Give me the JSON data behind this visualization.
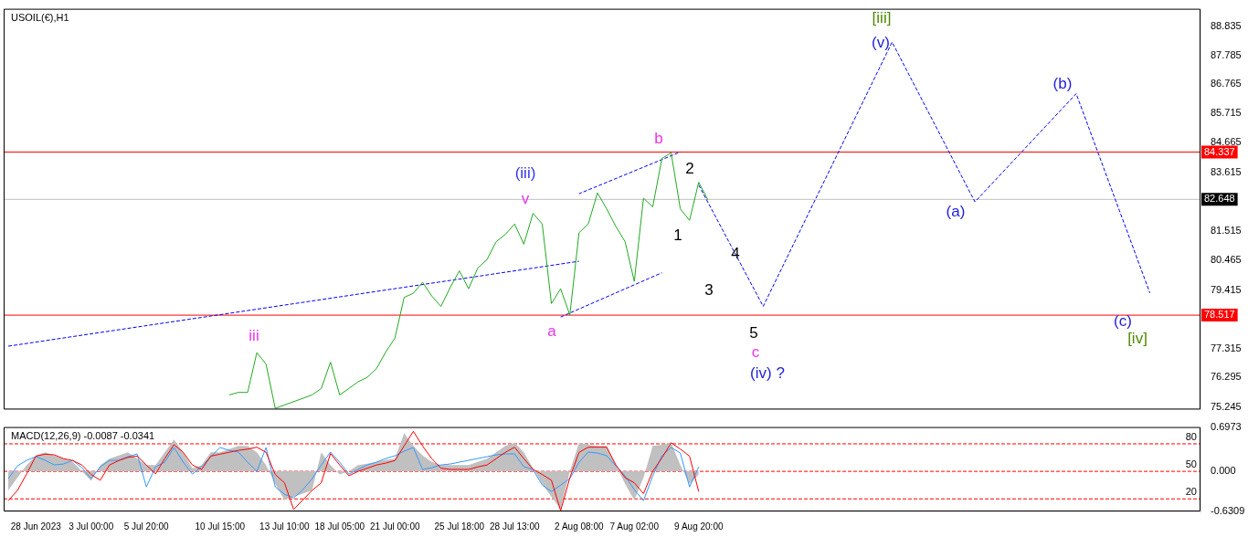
{
  "chart_data": [
    {
      "type": "line",
      "title": "USOIL(€),H1",
      "ylim": [
        75.15,
        89.45
      ],
      "categories": [
        null,
        null,
        null,
        null,
        null,
        null,
        null,
        null,
        null,
        null,
        null,
        null,
        null,
        null,
        null,
        null,
        null,
        null,
        null,
        null,
        null,
        null,
        null,
        null,
        null,
        null,
        null,
        null,
        null,
        null,
        null,
        null,
        null,
        null,
        null,
        null,
        null,
        null,
        null,
        null,
        null,
        null,
        null,
        null,
        null,
        null,
        null,
        null,
        null,
        null,
        null,
        null,
        null,
        null,
        null,
        null,
        null,
        null,
        null,
        null,
        null,
        null,
        null,
        null,
        null,
        null,
        null,
        null,
        null,
        null,
        null,
        null,
        null,
        null,
        null,
        null,
        null,
        null,
        null,
        null,
        null,
        null,
        null,
        null,
        null,
        null,
        null,
        null,
        null,
        null,
        null,
        null,
        null,
        null,
        null,
        null,
        null,
        null,
        null,
        null,
        null,
        null,
        null,
        null,
        null,
        null,
        null,
        null,
        null,
        null,
        null,
        null,
        null,
        null,
        null,
        null,
        null,
        null,
        null,
        null,
        null,
        null,
        null,
        null,
        null,
        null,
        null,
        null,
        null,
        null
      ],
      "yticks": [
        75.245,
        76.295,
        77.315,
        79.415,
        80.465,
        81.515,
        83.615,
        84.665,
        85.715,
        86.765,
        87.785,
        88.835
      ],
      "tick_labels": "y",
      "grid": false,
      "marker": "none",
      "series": [
        {
          "color": "#22aa22",
          "values": [
            null,
            null,
            null,
            null,
            null,
            null,
            null,
            null,
            null,
            null,
            null,
            null,
            null,
            null,
            null,
            null,
            null,
            null,
            null,
            null,
            null,
            null,
            null,
            null,
            75.67,
            75.76,
            75.76,
            77.18,
            76.77,
            75.19,
            null,
            null,
            null,
            75.67,
            75.9,
            76.84,
            75.67,
            75.9,
            76.14,
            76.3,
            76.61,
            77.2,
            77.7,
            79.15,
            79.3,
            79.69,
            79.2,
            78.83,
            79.5,
            80.1,
            79.46,
            80.2,
            80.5,
            81.14,
            81.4,
            81.77,
            81.05,
            82.15,
            81.77,
            78.93,
            79.46,
            78.52,
            81.46,
            81.77,
            82.88,
            82.31,
            81.68,
            81.14,
            79.72,
            82.69,
            82.38,
            84.11,
            84.31,
            82.31,
            81.9,
            83.26,
            82.63,
            null,
            null,
            null,
            null,
            null,
            null,
            null,
            null,
            null,
            null,
            null,
            null,
            null,
            null,
            null,
            null,
            null,
            null,
            null,
            null,
            null,
            null,
            null,
            null,
            null,
            null,
            null,
            null,
            null,
            null,
            null,
            null,
            null,
            null,
            null,
            null,
            null,
            null,
            null,
            null,
            null,
            null,
            null,
            null,
            null,
            null,
            null,
            null,
            null,
            null,
            null,
            null,
            null
          ]
        },
        {
          "color": "#0000ff",
          "line_style": "dashed",
          "values": [
            77.41,
            null,
            null,
            null,
            null,
            null,
            null,
            null,
            null,
            null,
            null,
            null,
            null,
            null,
            null,
            null,
            null,
            null,
            null,
            null,
            null,
            null,
            null,
            null,
            null,
            null,
            null,
            null,
            null,
            null,
            null,
            null,
            null,
            null,
            null,
            null,
            null,
            null,
            null,
            null,
            null,
            null,
            null,
            null,
            null,
            null,
            null,
            null,
            null,
            null,
            null,
            null,
            null,
            null,
            null,
            null,
            null,
            null,
            null,
            null,
            null,
            null,
            80.44,
            null,
            null,
            null,
            null,
            null,
            null,
            null,
            null,
            null,
            null,
            null,
            null,
            null,
            null,
            null,
            null,
            null,
            null,
            null,
            null,
            null,
            null,
            null,
            null,
            null,
            null,
            null,
            null,
            null,
            null,
            null,
            null,
            null,
            null,
            null,
            null,
            null,
            null,
            null,
            null,
            null,
            null,
            null,
            null,
            null,
            null,
            null,
            null,
            null,
            null,
            null,
            null,
            null,
            null,
            null,
            null,
            null,
            null,
            null,
            null,
            null,
            null,
            null,
            null,
            null,
            null,
            null
          ]
        },
        {
          "color": "#0000ff",
          "line_style": "dashed",
          "values": [
            null,
            null,
            null,
            null,
            null,
            null,
            null,
            null,
            null,
            null,
            null,
            null,
            null,
            null,
            null,
            null,
            null,
            null,
            null,
            null,
            null,
            null,
            null,
            null,
            null,
            null,
            null,
            null,
            null,
            null,
            null,
            null,
            null,
            null,
            null,
            null,
            null,
            null,
            null,
            null,
            null,
            null,
            null,
            null,
            null,
            null,
            null,
            null,
            null,
            null,
            null,
            null,
            null,
            null,
            null,
            null,
            null,
            null,
            null,
            null,
            null,
            null,
            82.85,
            null,
            null,
            null,
            null,
            null,
            null,
            null,
            null,
            null,
            null,
            84.34,
            null,
            null,
            null,
            null,
            null,
            null,
            null,
            null,
            null,
            null,
            null,
            null,
            null,
            null,
            null,
            null,
            null,
            null,
            null,
            null,
            null,
            null,
            null,
            null,
            null,
            null,
            null,
            null,
            null,
            null,
            null,
            null,
            null,
            null,
            null,
            null,
            null,
            null,
            null,
            null,
            null,
            null,
            null,
            null,
            null,
            null,
            null,
            null,
            null,
            null,
            null,
            null,
            null,
            null,
            null,
            null
          ]
        },
        {
          "color": "#0000ff",
          "line_style": "dashed",
          "values": [
            null,
            null,
            null,
            null,
            null,
            null,
            null,
            null,
            null,
            null,
            null,
            null,
            null,
            null,
            null,
            null,
            null,
            null,
            null,
            null,
            null,
            null,
            null,
            null,
            null,
            null,
            null,
            null,
            null,
            null,
            null,
            null,
            null,
            null,
            null,
            null,
            null,
            null,
            null,
            null,
            null,
            null,
            null,
            null,
            null,
            null,
            null,
            null,
            null,
            null,
            null,
            null,
            null,
            null,
            null,
            null,
            null,
            null,
            null,
            null,
            78.45,
            null,
            null,
            null,
            null,
            null,
            null,
            null,
            null,
            null,
            null,
            80.03,
            null,
            null,
            null,
            null,
            null,
            null,
            null,
            null,
            null,
            null,
            null,
            null,
            null,
            null,
            null,
            null,
            null,
            null,
            null,
            null,
            null,
            null,
            null,
            null,
            null,
            null,
            null,
            null,
            null,
            null,
            null,
            null,
            null,
            null,
            null,
            null,
            null,
            null,
            null,
            null,
            null,
            null,
            null,
            null,
            null,
            null,
            null,
            null,
            null,
            null,
            null,
            null,
            null,
            null,
            null,
            null,
            null,
            null
          ]
        },
        {
          "color": "#0000ff",
          "line_style": "dashed",
          "values": [
            null,
            null,
            null,
            null,
            null,
            null,
            null,
            null,
            null,
            null,
            null,
            null,
            null,
            null,
            null,
            null,
            null,
            null,
            null,
            null,
            null,
            null,
            null,
            null,
            null,
            null,
            null,
            null,
            null,
            null,
            null,
            null,
            null,
            null,
            null,
            null,
            null,
            null,
            null,
            null,
            null,
            null,
            null,
            null,
            null,
            null,
            null,
            null,
            null,
            null,
            null,
            null,
            null,
            null,
            null,
            null,
            null,
            null,
            null,
            null,
            null,
            null,
            null,
            null,
            null,
            null,
            null,
            null,
            null,
            null,
            null,
            null,
            null,
            null,
            null,
            83.16,
            null,
            null,
            null,
            null,
            null,
            null,
            78.83,
            null,
            null,
            null,
            null,
            null,
            null,
            null,
            null,
            null,
            null,
            null,
            null,
            null,
            88.26,
            null,
            null,
            null,
            null,
            null,
            null,
            null,
            null,
            82.56,
            null,
            null,
            null,
            null,
            null,
            null,
            null,
            null,
            null,
            null,
            86.42,
            null,
            null,
            null,
            null,
            null,
            null,
            null,
            79.31,
            null,
            null,
            null,
            null,
            null
          ]
        }
      ],
      "ref_lines": [
        {
          "axis": "y",
          "value": 84.337,
          "label": "84.337",
          "color": "#ff0000",
          "line_style": "solid"
        },
        {
          "axis": "y",
          "value": 82.648,
          "label": "82.648",
          "color": "#c0c0c0",
          "line_style": "solid"
        },
        {
          "axis": "y",
          "value": 78.517,
          "label": "78.517",
          "color": "#ff0000",
          "line_style": "solid"
        }
      ],
      "annotations": [
        "iii",
        "(iii)",
        "v",
        "a",
        "b",
        "2",
        "1",
        "4",
        "3",
        "5",
        "c",
        "(iv) ?",
        "[iii]",
        "(v)",
        "(a)",
        "(b)",
        "(c)",
        "[iv]"
      ]
    },
    {
      "type": "line",
      "title": "MACD(12,26,9) -0.0087 -0.0341",
      "ylim": [
        -0.6309,
        0.6973
      ],
      "y2lim": [
        6.3,
        98.3
      ],
      "categories": [
        null,
        null,
        null,
        "28 Jun 2023",
        null,
        null,
        null,
        null,
        null,
        "3 Jul 00:00",
        null,
        null,
        null,
        null,
        null,
        "5 Jul 20:00",
        null,
        null,
        null,
        null,
        null,
        null,
        null,
        "10 Jul 15:00",
        null,
        null,
        null,
        null,
        null,
        null,
        "13 Jul 10:00",
        null,
        null,
        null,
        null,
        null,
        "18 Jul 05:00",
        null,
        null,
        null,
        null,
        null,
        "21 Jul 00:00",
        null,
        null,
        null,
        null,
        null,
        null,
        "25 Jul 18:00",
        null,
        null,
        null,
        null,
        null,
        "28 Jul 13:00",
        null,
        null,
        null,
        null,
        null,
        null,
        "2 Aug 08:00",
        null,
        null,
        null,
        null,
        null,
        "7 Aug 02:00",
        null,
        null,
        null,
        null,
        null,
        null,
        "9 Aug 20:00",
        null,
        null,
        null,
        null,
        null,
        null,
        null,
        null,
        null,
        null,
        null,
        null,
        null,
        null,
        null,
        null,
        null,
        null,
        null,
        null,
        null,
        null,
        null,
        null,
        null,
        null,
        null,
        null,
        null,
        null,
        null,
        null,
        null,
        null,
        null,
        null,
        null,
        null,
        null,
        null,
        null,
        null,
        null,
        null,
        null,
        null,
        null,
        null,
        null,
        null,
        null,
        null,
        null,
        null
      ],
      "yticks": [
        -0.6309,
        {
          "value": 0,
          "label": "0.000"
        },
        0.6973
      ],
      "grid": false,
      "marker": "none",
      "series": [
        {
          "type": "area",
          "color": "#c0c0c0",
          "values": [
            -0.3,
            -0.1,
            0.1,
            0.25,
            0.3,
            0.25,
            0.2,
            0.15,
            0,
            -0.15,
            0.1,
            0.2,
            0.25,
            0.3,
            0.2,
            0.1,
            0.1,
            0.3,
            0.5,
            0.3,
            0.05,
            0.1,
            0.3,
            0.3,
            0.35,
            0.4,
            0.4,
            0.3,
            0.1,
            -0.2,
            -0.45,
            -0.4,
            -0.35,
            -0.3,
            0.3,
            0.1,
            -0.05,
            0,
            0.1,
            0.12,
            0.15,
            0.18,
            0.2,
            0.6,
            0.4,
            0.25,
            0.15,
            0.1,
            0.1,
            0.1,
            0.1,
            0.15,
            0.2,
            0.3,
            0.4,
            0.45,
            0.3,
            0.05,
            -0.2,
            -0.4,
            -0.6,
            0,
            0.45,
            0.42,
            0.4,
            0.4,
            0.1,
            -0.2,
            -0.45,
            -0.1,
            0.4,
            0.42,
            0.45,
            0.1,
            -0.2,
            -0.05,
            null,
            null,
            null,
            null,
            null,
            null,
            null,
            null,
            null,
            null,
            null,
            null,
            null,
            null,
            null,
            null,
            null,
            null,
            null,
            null,
            null,
            null,
            null,
            null,
            null,
            null,
            null,
            null,
            null,
            null,
            null,
            null,
            null,
            null,
            null,
            null,
            null,
            null,
            null,
            null,
            null,
            null,
            null,
            null,
            null,
            null,
            null,
            null,
            null,
            null,
            null,
            null,
            null,
            null
          ]
        },
        {
          "color": "#ff0000",
          "values": [
            -0.46,
            -0.3,
            -0.04,
            0.24,
            0.27,
            0.26,
            0.2,
            0.17,
            0.1,
            -0.05,
            -0.14,
            0.1,
            0.17,
            0.22,
            0.24,
            0.1,
            -0.04,
            0.2,
            0.42,
            0.3,
            0.1,
            0.03,
            0.24,
            0.27,
            0.3,
            0.33,
            0.35,
            0.38,
            0.3,
            -0.05,
            -0.18,
            -0.6,
            -0.45,
            -0.3,
            -0.18,
            0.28,
            0.1,
            -0.07,
            0,
            0.05,
            0.1,
            0.13,
            0.17,
            0.4,
            0.63,
            0.4,
            0.2,
            0.05,
            0.03,
            0.03,
            0.03,
            0.07,
            0.1,
            0.2,
            0.3,
            0.38,
            0.2,
            0.03,
            -0.05,
            -0.14,
            -0.62,
            -0.1,
            0.3,
            0.38,
            0.38,
            0.38,
            0.1,
            -0.1,
            -0.18,
            -0.35,
            0,
            0.21,
            0.45,
            0.35,
            0.24,
            -0.32,
            null,
            null,
            null,
            null,
            null,
            null,
            null,
            null,
            null,
            null,
            null,
            null,
            null,
            null,
            null,
            null,
            null,
            null,
            null,
            null,
            null,
            null,
            null,
            null,
            null,
            null,
            null,
            null,
            null,
            null,
            null,
            null,
            null,
            null,
            null,
            null,
            null,
            null,
            null,
            null,
            null,
            null,
            null,
            null,
            null,
            null,
            null,
            null,
            null,
            null,
            null,
            null,
            null,
            null
          ]
        },
        {
          "color": "#3399ff",
          "axis": "y2",
          "values": [
            42,
            56,
            62,
            66,
            62,
            57,
            58,
            62,
            54,
            42,
            55,
            62,
            62,
            66,
            69,
            33,
            55,
            60,
            76,
            60,
            47,
            55,
            66,
            76,
            73,
            71,
            60,
            50,
            76,
            33,
            25,
            21,
            30,
            42,
            57,
            71,
            60,
            47,
            52,
            57,
            60,
            64,
            67,
            72,
            76,
            52,
            54,
            57,
            58,
            60,
            62,
            64,
            66,
            68,
            69,
            69,
            55,
            52,
            35,
            28,
            35,
            42,
            60,
            71,
            70,
            67,
            56,
            45,
            30,
            18,
            45,
            67,
            76,
            70,
            33,
            55,
            null,
            null,
            null,
            null,
            null,
            null,
            null,
            null,
            null,
            null,
            null,
            null,
            null,
            null,
            null,
            null,
            null,
            null,
            null,
            null,
            null,
            null,
            null,
            null,
            null,
            null,
            null,
            null,
            null,
            null,
            null,
            null,
            null,
            null,
            null,
            null,
            null,
            null,
            null,
            null,
            null,
            null,
            null,
            null,
            null,
            null,
            null,
            null,
            null,
            null,
            null,
            null,
            null,
            null
          ]
        }
      ],
      "ref_lines": [
        {
          "axis": "y2",
          "value": 80,
          "label": "80",
          "color": "#ff0000",
          "line_style": "dashed"
        },
        {
          "axis": "y2",
          "value": 50,
          "label": "50",
          "color": "#ff0000",
          "line_style": "dashed"
        },
        {
          "axis": "y2",
          "value": 20,
          "label": "20",
          "color": "#ff0000",
          "line_style": "dashed"
        }
      ]
    }
  ]
}
